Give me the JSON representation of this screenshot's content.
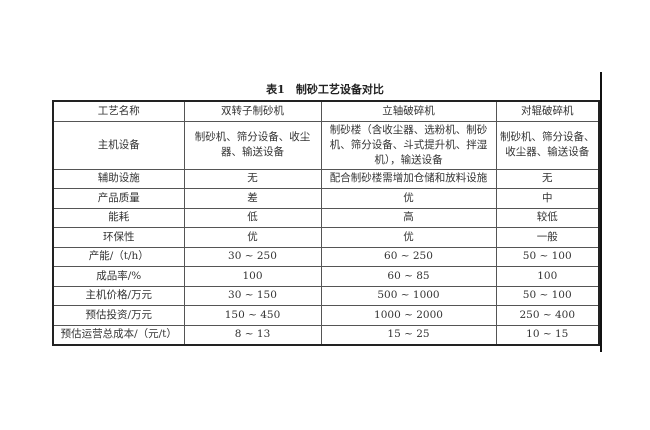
{
  "title": "表1　制砂工艺设备对比",
  "headers": [
    "工艺名称",
    "双转子制砂机",
    "立轴破碎机",
    "对辊破碎机"
  ],
  "rows": [
    [
      "主机设备",
      "制砂机、筛分设备、收尘器、输送设备",
      "制砂楼（含收尘器、选粉机、制砂机、筛分设备、斗式提升机、拌湿机），输送设备",
      "制砂机、筛分设备、收尘器、输送设备"
    ],
    [
      "辅助设施",
      "无",
      "配合制砂楼需增加仓储和放料设施",
      "无"
    ],
    [
      "产品质量",
      "差",
      "优",
      "中"
    ],
    [
      "能耗",
      "低",
      "高",
      "较低"
    ],
    [
      "环保性",
      "优",
      "优",
      "一般"
    ],
    [
      "产能/（t/h）",
      "30 ~ 250",
      "60 ~ 250",
      "50 ~ 100"
    ],
    [
      "成品率/%",
      "100",
      "60 ~ 85",
      "100"
    ],
    [
      "主机价格/万元",
      "30 ~ 150",
      "500 ~ 1000",
      "50 ~ 100"
    ],
    [
      "预估投资/万元",
      "150 ~ 450",
      "1000 ~ 2000",
      "250 ~ 400"
    ],
    [
      "预估运营总成本/（元/t）",
      "8 ~ 13",
      "15 ~ 25",
      "10 ~ 15"
    ]
  ]
}
